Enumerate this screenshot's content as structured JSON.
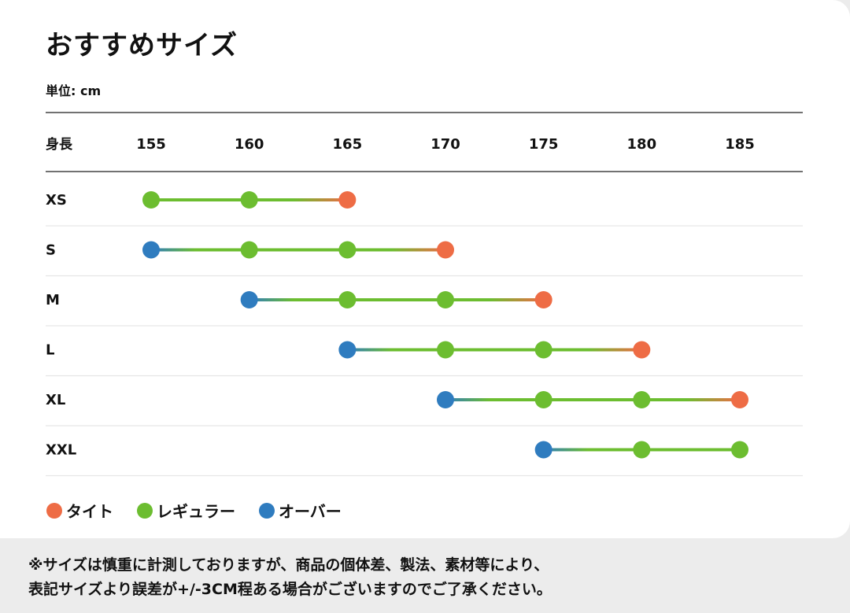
{
  "title": "おすすめサイズ",
  "unit": "単位: cm",
  "chart_data": {
    "type": "dot-range",
    "title": "おすすめサイズ",
    "xlabel": "身長",
    "ticks": [
      155,
      160,
      165,
      170,
      175,
      180,
      185
    ],
    "xlim": [
      155,
      185
    ],
    "fit_colors": {
      "tight": "#ee6c45",
      "regular": "#6cbd30",
      "over": "#2f7cbf"
    },
    "legend": [
      {
        "key": "tight",
        "label": "タイト"
      },
      {
        "key": "regular",
        "label": "レギュラー"
      },
      {
        "key": "over",
        "label": "オーバー"
      }
    ],
    "rows": [
      {
        "size": "XS",
        "points": [
          {
            "height": 155,
            "fit": "regular"
          },
          {
            "height": 160,
            "fit": "regular"
          },
          {
            "height": 165,
            "fit": "tight"
          }
        ]
      },
      {
        "size": "S",
        "points": [
          {
            "height": 155,
            "fit": "over"
          },
          {
            "height": 160,
            "fit": "regular"
          },
          {
            "height": 165,
            "fit": "regular"
          },
          {
            "height": 170,
            "fit": "tight"
          }
        ]
      },
      {
        "size": "M",
        "points": [
          {
            "height": 160,
            "fit": "over"
          },
          {
            "height": 165,
            "fit": "regular"
          },
          {
            "height": 170,
            "fit": "regular"
          },
          {
            "height": 175,
            "fit": "tight"
          }
        ]
      },
      {
        "size": "L",
        "points": [
          {
            "height": 165,
            "fit": "over"
          },
          {
            "height": 170,
            "fit": "regular"
          },
          {
            "height": 175,
            "fit": "regular"
          },
          {
            "height": 180,
            "fit": "tight"
          }
        ]
      },
      {
        "size": "XL",
        "points": [
          {
            "height": 170,
            "fit": "over"
          },
          {
            "height": 175,
            "fit": "regular"
          },
          {
            "height": 180,
            "fit": "regular"
          },
          {
            "height": 185,
            "fit": "tight"
          }
        ]
      },
      {
        "size": "XXL",
        "points": [
          {
            "height": 175,
            "fit": "over"
          },
          {
            "height": 180,
            "fit": "regular"
          },
          {
            "height": 185,
            "fit": "regular"
          }
        ]
      }
    ]
  },
  "footnote": {
    "line1": "※サイズは慎重に計測しておりますが、商品の個体差、製法、素材等により、",
    "line2": "表記サイズより誤差が+/-3CM程ある場合がございますのでご了承ください。"
  }
}
